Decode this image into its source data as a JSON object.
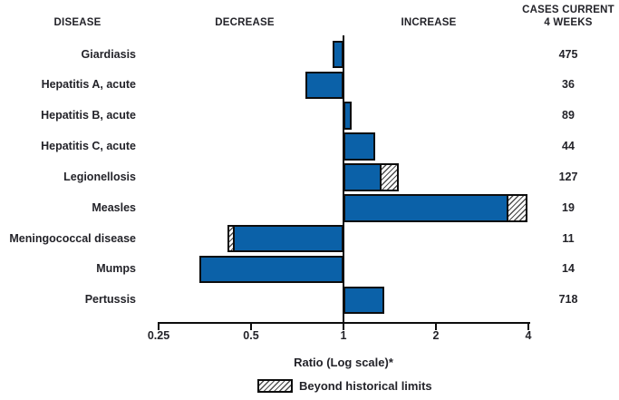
{
  "header": {
    "disease": "DISEASE",
    "decrease": "DECREASE",
    "increase": "INCREASE",
    "cases_line1": "CASES CURRENT",
    "cases_line2": "4 WEEKS"
  },
  "chart_data": {
    "type": "bar",
    "variant": "horizontal-log-ratio",
    "xlabel": "Ratio (Log scale)*",
    "xlim": [
      0.25,
      4
    ],
    "baseline_ratio": 1,
    "x_ticks": [
      0.25,
      0.5,
      1,
      2,
      4
    ],
    "x_tick_labels": [
      "0.25",
      "0.5",
      "1",
      "2",
      "4"
    ],
    "grid": false,
    "legend": {
      "label": "Beyond historical limits",
      "swatch": "hatched",
      "position": "bottom"
    },
    "rows": [
      {
        "disease": "Giardiasis",
        "ratio": 0.92,
        "beyond": false,
        "cases": 475
      },
      {
        "disease": "Hepatitis A, acute",
        "ratio": 0.75,
        "beyond": false,
        "cases": 36
      },
      {
        "disease": "Hepatitis B, acute",
        "ratio": 1.06,
        "beyond": false,
        "cases": 89
      },
      {
        "disease": "Hepatitis C, acute",
        "ratio": 1.27,
        "beyond": false,
        "cases": 44
      },
      {
        "disease": "Legionellosis",
        "ratio": 1.51,
        "beyond": true,
        "beyond_start": 1.35,
        "cases": 127
      },
      {
        "disease": "Measles",
        "ratio": 3.98,
        "beyond": true,
        "beyond_start": 3.48,
        "cases": 19
      },
      {
        "disease": "Meningococcal disease",
        "ratio": 0.42,
        "beyond": true,
        "beyond_start": 0.43,
        "cases": 11
      },
      {
        "disease": "Mumps",
        "ratio": 0.34,
        "beyond": false,
        "cases": 14
      },
      {
        "disease": "Pertussis",
        "ratio": 1.36,
        "beyond": false,
        "cases": 718
      }
    ]
  },
  "colors": {
    "bar_fill": "#0b61a8",
    "bar_border": "#0d0d0d",
    "hatch_line": "#4d4d4d",
    "text": "#232329"
  }
}
